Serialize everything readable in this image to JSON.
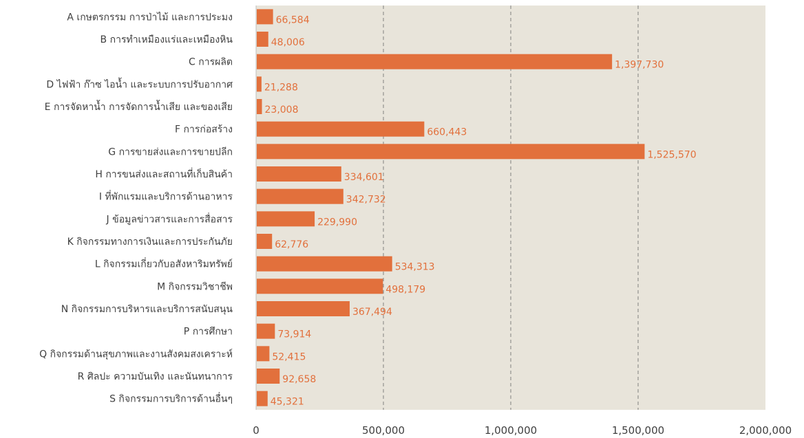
{
  "chart_data": {
    "type": "bar",
    "orientation": "horizontal",
    "categories": [
      "A เกษตรกรรม การป่าไม้ และการประมง",
      "B การทำเหมืองแร่และเหมืองหิน",
      "C การผลิต",
      "D ไฟฟ้า ก๊าซ ไอน้ำ และระบบการปรับอากาศ",
      "E การจัดหาน้ำ การจัดการน้ำเสีย และของเสีย",
      "F การก่อสร้าง",
      "G การขายส่งและการขายปลีก",
      "H การขนส่งและสถานที่เก็บสินค้า",
      "I ที่พักแรมและบริการด้านอาหาร",
      "J ข้อมูลข่าวสารและการสื่อสาร",
      "K กิจกรรมทางการเงินและการประกันภัย",
      "L กิจกรรมเกี่ยวกับอสังหาริมทรัพย์",
      "M กิจกรรมวิชาชีพ",
      "N กิจกรรมการบริหารและบริการสนับสนุน",
      "P การศึกษา",
      "Q กิจกรรมด้านสุขภาพและงานสังคมสงเคราะห์",
      "R ศิลปะ ความบันเทิง และนันทนาการ",
      "S กิจกรรมการบริการด้านอื่นๆ"
    ],
    "values": [
      66584,
      48006,
      1397730,
      21288,
      23008,
      660443,
      1525570,
      334601,
      342732,
      229990,
      62776,
      534313,
      498179,
      367494,
      73914,
      52415,
      92658,
      45321
    ],
    "value_labels": [
      "66,584",
      "48,006",
      "1,397,730",
      "21,288",
      "23,008",
      "660,443",
      "1,525,570",
      "334,601",
      "342,732",
      "229,990",
      "62,776",
      "534,313",
      "498,179",
      "367,494",
      "73,914",
      "52,415",
      "92,658",
      "45,321"
    ],
    "x_ticks": [
      "0",
      "500,000",
      "1,000,000",
      "1,500,000",
      "2,000,000"
    ],
    "xlim": [
      0,
      2000000
    ],
    "title": "",
    "xlabel": "",
    "ylabel": "",
    "grid": "vertical dashed",
    "colors": {
      "bar": "#e2703c",
      "plot_background": "#e8e4da",
      "grid": "#7f7f7f",
      "value_label": "#e2703c",
      "text": "#404040"
    }
  }
}
